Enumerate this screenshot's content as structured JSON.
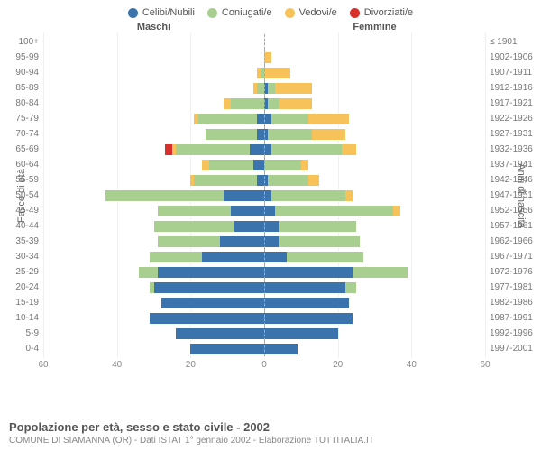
{
  "legend": [
    {
      "label": "Celibi/Nubili",
      "color": "#3b73ad"
    },
    {
      "label": "Coniugati/e",
      "color": "#a8cf8f"
    },
    {
      "label": "Vedovi/e",
      "color": "#f8c25a"
    },
    {
      "label": "Divorziati/e",
      "color": "#d9302c"
    }
  ],
  "header": {
    "male": "Maschi",
    "female": "Femmine"
  },
  "axis": {
    "left_title": "Fasce di età",
    "right_title": "Anni di nascita",
    "max": 60,
    "tick_step": 20,
    "ticks_left": [
      60,
      40,
      20,
      0
    ],
    "ticks_right": [
      0,
      20,
      40,
      60
    ]
  },
  "colors": {
    "single": "#3b73ad",
    "married": "#a8cf8f",
    "widowed": "#f8c25a",
    "divorced": "#d9302c",
    "bg": "#ffffff",
    "grid": "#f0f0f0",
    "text": "#666666"
  },
  "rows": [
    {
      "age": "100+",
      "year": "≤ 1901",
      "m": {
        "single": 0,
        "married": 0,
        "widowed": 0,
        "divorced": 0
      },
      "f": {
        "single": 0,
        "married": 0,
        "widowed": 0,
        "divorced": 0
      }
    },
    {
      "age": "95-99",
      "year": "1902-1906",
      "m": {
        "single": 0,
        "married": 0,
        "widowed": 0,
        "divorced": 0
      },
      "f": {
        "single": 0,
        "married": 0,
        "widowed": 2,
        "divorced": 0
      }
    },
    {
      "age": "90-94",
      "year": "1907-1911",
      "m": {
        "single": 0,
        "married": 1,
        "widowed": 1,
        "divorced": 0
      },
      "f": {
        "single": 0,
        "married": 0,
        "widowed": 7,
        "divorced": 0
      }
    },
    {
      "age": "85-89",
      "year": "1912-1916",
      "m": {
        "single": 0,
        "married": 2,
        "widowed": 1,
        "divorced": 0
      },
      "f": {
        "single": 1,
        "married": 2,
        "widowed": 10,
        "divorced": 0
      }
    },
    {
      "age": "80-84",
      "year": "1917-1921",
      "m": {
        "single": 0,
        "married": 9,
        "widowed": 2,
        "divorced": 0
      },
      "f": {
        "single": 1,
        "married": 3,
        "widowed": 9,
        "divorced": 0
      }
    },
    {
      "age": "75-79",
      "year": "1922-1926",
      "m": {
        "single": 2,
        "married": 16,
        "widowed": 1,
        "divorced": 0
      },
      "f": {
        "single": 2,
        "married": 10,
        "widowed": 11,
        "divorced": 0
      }
    },
    {
      "age": "70-74",
      "year": "1927-1931",
      "m": {
        "single": 2,
        "married": 14,
        "widowed": 0,
        "divorced": 0
      },
      "f": {
        "single": 1,
        "married": 12,
        "widowed": 9,
        "divorced": 0
      }
    },
    {
      "age": "65-69",
      "year": "1932-1936",
      "m": {
        "single": 4,
        "married": 20,
        "widowed": 1,
        "divorced": 2
      },
      "f": {
        "single": 2,
        "married": 19,
        "widowed": 4,
        "divorced": 0
      }
    },
    {
      "age": "60-64",
      "year": "1937-1941",
      "m": {
        "single": 3,
        "married": 12,
        "widowed": 2,
        "divorced": 0
      },
      "f": {
        "single": 0,
        "married": 10,
        "widowed": 2,
        "divorced": 0
      }
    },
    {
      "age": "55-59",
      "year": "1942-1946",
      "m": {
        "single": 2,
        "married": 17,
        "widowed": 1,
        "divorced": 0
      },
      "f": {
        "single": 1,
        "married": 11,
        "widowed": 3,
        "divorced": 0
      }
    },
    {
      "age": "50-54",
      "year": "1947-1951",
      "m": {
        "single": 11,
        "married": 32,
        "widowed": 0,
        "divorced": 0
      },
      "f": {
        "single": 2,
        "married": 20,
        "widowed": 2,
        "divorced": 0
      }
    },
    {
      "age": "45-49",
      "year": "1952-1956",
      "m": {
        "single": 9,
        "married": 20,
        "widowed": 0,
        "divorced": 0
      },
      "f": {
        "single": 3,
        "married": 32,
        "widowed": 2,
        "divorced": 0
      }
    },
    {
      "age": "40-44",
      "year": "1957-1961",
      "m": {
        "single": 8,
        "married": 22,
        "widowed": 0,
        "divorced": 0
      },
      "f": {
        "single": 4,
        "married": 21,
        "widowed": 0,
        "divorced": 0
      }
    },
    {
      "age": "35-39",
      "year": "1962-1966",
      "m": {
        "single": 12,
        "married": 17,
        "widowed": 0,
        "divorced": 0
      },
      "f": {
        "single": 4,
        "married": 22,
        "widowed": 0,
        "divorced": 0
      }
    },
    {
      "age": "30-34",
      "year": "1967-1971",
      "m": {
        "single": 17,
        "married": 14,
        "widowed": 0,
        "divorced": 0
      },
      "f": {
        "single": 6,
        "married": 21,
        "widowed": 0,
        "divorced": 0
      }
    },
    {
      "age": "25-29",
      "year": "1972-1976",
      "m": {
        "single": 29,
        "married": 5,
        "widowed": 0,
        "divorced": 0
      },
      "f": {
        "single": 24,
        "married": 15,
        "widowed": 0,
        "divorced": 0
      }
    },
    {
      "age": "20-24",
      "year": "1977-1981",
      "m": {
        "single": 30,
        "married": 1,
        "widowed": 0,
        "divorced": 0
      },
      "f": {
        "single": 22,
        "married": 3,
        "widowed": 0,
        "divorced": 0
      }
    },
    {
      "age": "15-19",
      "year": "1982-1986",
      "m": {
        "single": 28,
        "married": 0,
        "widowed": 0,
        "divorced": 0
      },
      "f": {
        "single": 23,
        "married": 0,
        "widowed": 0,
        "divorced": 0
      }
    },
    {
      "age": "10-14",
      "year": "1987-1991",
      "m": {
        "single": 31,
        "married": 0,
        "widowed": 0,
        "divorced": 0
      },
      "f": {
        "single": 24,
        "married": 0,
        "widowed": 0,
        "divorced": 0
      }
    },
    {
      "age": "5-9",
      "year": "1992-1996",
      "m": {
        "single": 24,
        "married": 0,
        "widowed": 0,
        "divorced": 0
      },
      "f": {
        "single": 20,
        "married": 0,
        "widowed": 0,
        "divorced": 0
      }
    },
    {
      "age": "0-4",
      "year": "1997-2001",
      "m": {
        "single": 20,
        "married": 0,
        "widowed": 0,
        "divorced": 0
      },
      "f": {
        "single": 9,
        "married": 0,
        "widowed": 0,
        "divorced": 0
      }
    }
  ],
  "footer": {
    "title": "Popolazione per età, sesso e stato civile - 2002",
    "sub": "COMUNE DI SIAMANNA (OR) - Dati ISTAT 1° gennaio 2002 - Elaborazione TUTTITALIA.IT"
  }
}
